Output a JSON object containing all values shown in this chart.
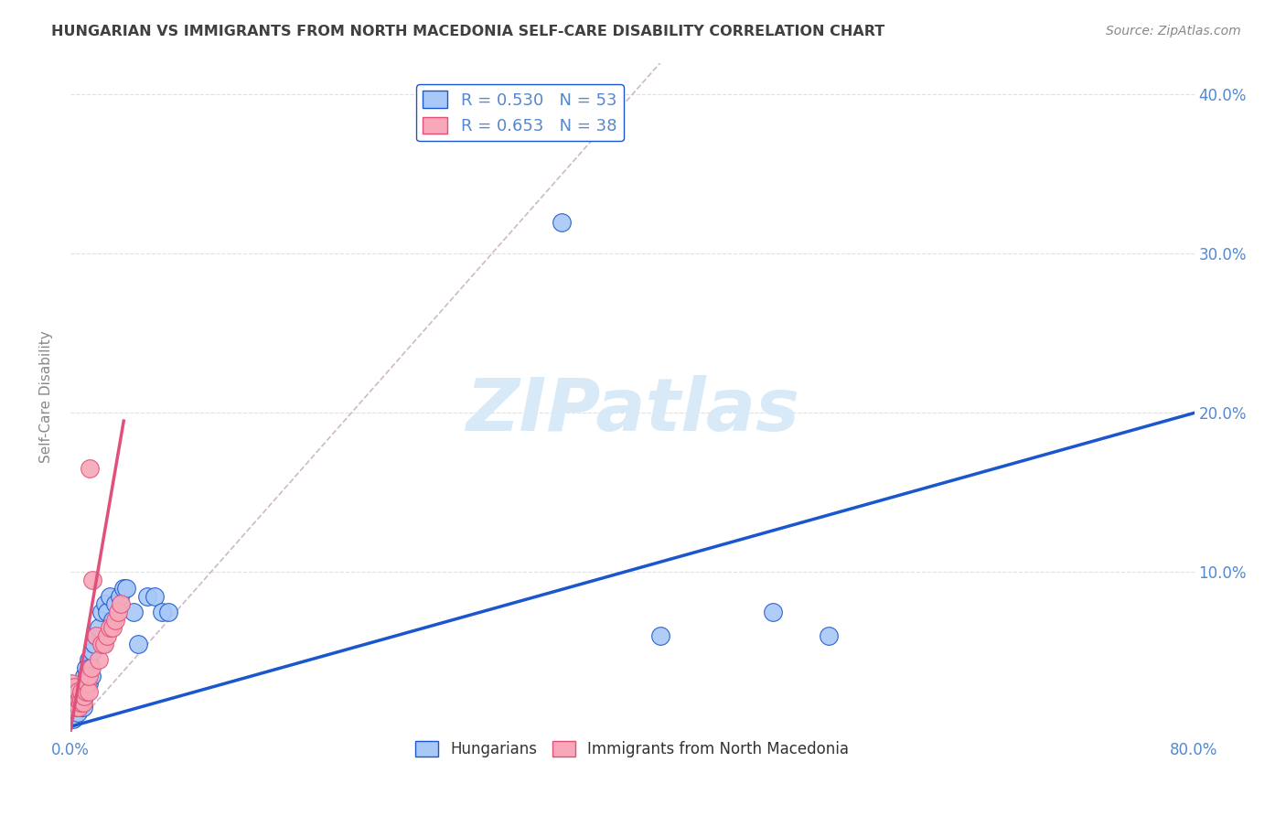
{
  "title": "HUNGARIAN VS IMMIGRANTS FROM NORTH MACEDONIA SELF-CARE DISABILITY CORRELATION CHART",
  "source": "Source: ZipAtlas.com",
  "ylabel": "Self-Care Disability",
  "xlim": [
    0.0,
    0.8
  ],
  "ylim": [
    0.0,
    0.42
  ],
  "xticks": [
    0.0,
    0.1,
    0.2,
    0.3,
    0.4,
    0.5,
    0.6,
    0.7,
    0.8
  ],
  "xticklabels": [
    "0.0%",
    "",
    "",
    "",
    "",
    "",
    "",
    "",
    "80.0%"
  ],
  "yticks": [
    0.0,
    0.1,
    0.2,
    0.3,
    0.4
  ],
  "yticklabels": [
    "",
    "10.0%",
    "20.0%",
    "30.0%",
    "40.0%"
  ],
  "hungarian_R": 0.53,
  "hungarian_N": 53,
  "macedonia_R": 0.653,
  "macedonia_N": 38,
  "hungarian_color": "#a8c8f8",
  "hungarian_line_color": "#1a56cc",
  "macedonia_color": "#f8a8b8",
  "macedonia_line_color": "#e0507a",
  "diagonal_color": "#d0b8c8",
  "background_color": "#ffffff",
  "grid_color": "#e0e0e0",
  "title_color": "#404040",
  "axis_color": "#5588cc",
  "watermark_color": "#d8eaf8",
  "watermark": "ZIPatlas",
  "hungarian_line_x0": 0.0,
  "hungarian_line_y0": 0.003,
  "hungarian_line_x1": 0.8,
  "hungarian_line_y1": 0.2,
  "macedonia_line_x0": 0.0,
  "macedonia_line_y0": 0.0,
  "macedonia_line_x1": 0.038,
  "macedonia_line_y1": 0.195,
  "hungarian_x": [
    0.001,
    0.002,
    0.002,
    0.003,
    0.003,
    0.003,
    0.004,
    0.004,
    0.005,
    0.005,
    0.005,
    0.006,
    0.006,
    0.007,
    0.007,
    0.007,
    0.008,
    0.008,
    0.009,
    0.009,
    0.01,
    0.01,
    0.011,
    0.011,
    0.012,
    0.013,
    0.013,
    0.014,
    0.015,
    0.016,
    0.017,
    0.018,
    0.02,
    0.022,
    0.023,
    0.025,
    0.026,
    0.028,
    0.03,
    0.032,
    0.035,
    0.038,
    0.04,
    0.045,
    0.048,
    0.055,
    0.06,
    0.065,
    0.07,
    0.35,
    0.42,
    0.5,
    0.54
  ],
  "hungarian_y": [
    0.01,
    0.008,
    0.02,
    0.015,
    0.02,
    0.025,
    0.018,
    0.022,
    0.012,
    0.018,
    0.025,
    0.02,
    0.028,
    0.015,
    0.02,
    0.025,
    0.018,
    0.028,
    0.015,
    0.022,
    0.03,
    0.035,
    0.028,
    0.04,
    0.035,
    0.03,
    0.045,
    0.04,
    0.035,
    0.05,
    0.055,
    0.06,
    0.065,
    0.075,
    0.055,
    0.08,
    0.075,
    0.085,
    0.07,
    0.08,
    0.085,
    0.09,
    0.09,
    0.075,
    0.055,
    0.085,
    0.085,
    0.075,
    0.075,
    0.32,
    0.06,
    0.075,
    0.06
  ],
  "macedonia_x": [
    0.001,
    0.001,
    0.001,
    0.002,
    0.002,
    0.002,
    0.003,
    0.003,
    0.003,
    0.004,
    0.004,
    0.005,
    0.005,
    0.006,
    0.006,
    0.007,
    0.007,
    0.008,
    0.008,
    0.009,
    0.01,
    0.011,
    0.012,
    0.013,
    0.013,
    0.014,
    0.015,
    0.016,
    0.018,
    0.02,
    0.022,
    0.024,
    0.026,
    0.028,
    0.03,
    0.032,
    0.034,
    0.036
  ],
  "macedonia_y": [
    0.018,
    0.022,
    0.03,
    0.015,
    0.02,
    0.025,
    0.018,
    0.022,
    0.028,
    0.015,
    0.02,
    0.018,
    0.025,
    0.015,
    0.02,
    0.018,
    0.022,
    0.02,
    0.025,
    0.018,
    0.022,
    0.025,
    0.03,
    0.025,
    0.035,
    0.165,
    0.04,
    0.095,
    0.06,
    0.045,
    0.055,
    0.055,
    0.06,
    0.065,
    0.065,
    0.07,
    0.075,
    0.08
  ]
}
